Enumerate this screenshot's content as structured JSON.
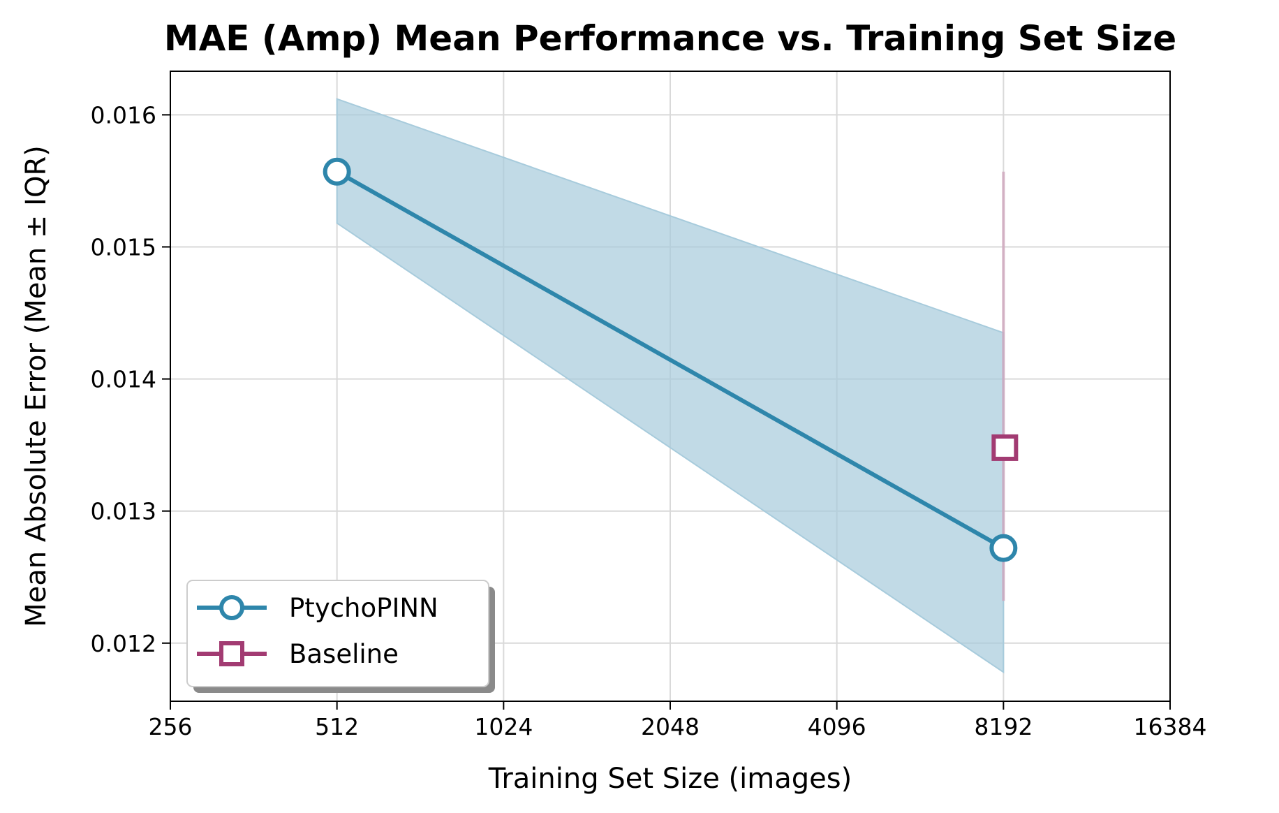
{
  "chart_data": {
    "type": "line",
    "title": "MAE (Amp) Mean Performance vs. Training Set Size",
    "xlabel": "Training Set Size (images)",
    "ylabel": "Mean Absolute Error (Mean ± IQR)",
    "x_scale": "log2",
    "xlim": [
      256,
      16384
    ],
    "ylim": [
      0.01156,
      0.01633
    ],
    "x_ticks": [
      256,
      512,
      1024,
      2048,
      4096,
      8192,
      16384
    ],
    "x_tick_labels": [
      "256",
      "512",
      "1024",
      "2048",
      "4096",
      "8192",
      "16384"
    ],
    "y_ticks": [
      0.012,
      0.013,
      0.014,
      0.015,
      0.016
    ],
    "y_tick_labels": [
      "0.012",
      "0.013",
      "0.014",
      "0.015",
      "0.016"
    ],
    "grid": true,
    "legend_position": "lower-left",
    "series": [
      {
        "name": "PtychoPINN",
        "color": "#2e86ab",
        "band_color": "#a7cbdc",
        "marker": "circle",
        "x": [
          512,
          8192
        ],
        "y": [
          0.01557,
          0.01272
        ],
        "y_low": [
          0.01518,
          0.01178
        ],
        "y_high": [
          0.01612,
          0.01435
        ]
      },
      {
        "name": "Baseline",
        "color": "#a23b72",
        "band_color": "#cfa6bd",
        "marker": "square",
        "x": [
          8192
        ],
        "y": [
          0.01348
        ],
        "y_low": [
          0.01232
        ],
        "y_high": [
          0.01557
        ]
      }
    ]
  }
}
